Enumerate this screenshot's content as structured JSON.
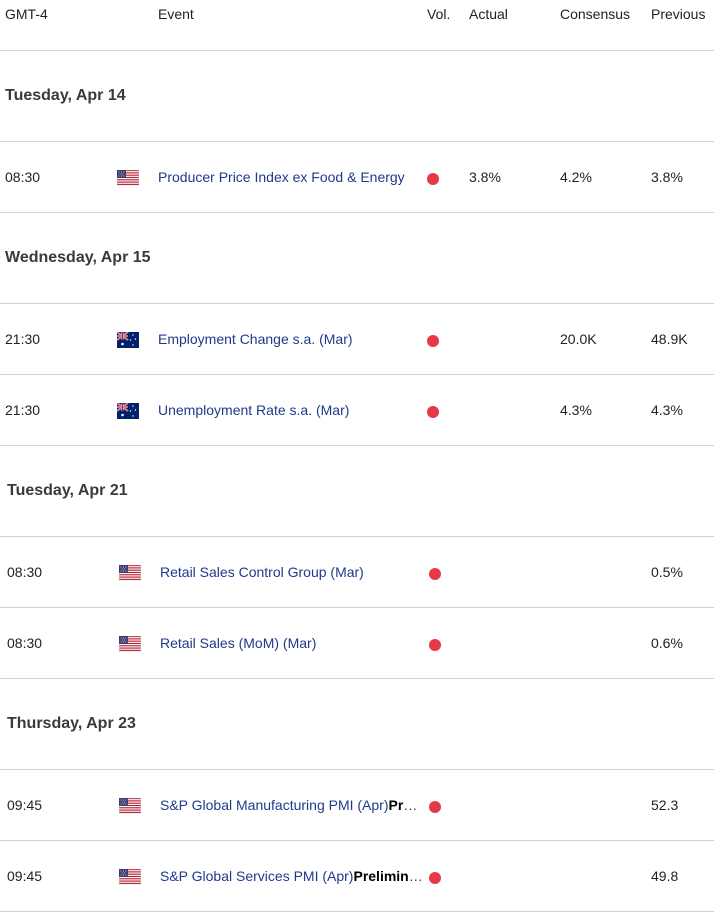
{
  "header": {
    "tz": "GMT-4",
    "event": "Event",
    "vol": "Vol.",
    "actual": "Actual",
    "consensus": "Consensus",
    "previous": "Previous"
  },
  "days": [
    {
      "label": "Tuesday, Apr 14",
      "events": [
        {
          "time": "08:30",
          "flag": "us-flag-icon",
          "event": "Producer Price Index ex Food & Energy",
          "event_bold": "",
          "actual": "3.8%",
          "consensus": "4.2%",
          "previous": "3.8%"
        }
      ]
    },
    {
      "label": "Wednesday, Apr 15",
      "events": [
        {
          "time": "21:30",
          "flag": "au-flag-icon",
          "event": "Employment Change s.a. (Mar)",
          "event_bold": "",
          "actual": "",
          "consensus": "20.0K",
          "previous": "48.9K"
        },
        {
          "time": "21:30",
          "flag": "au-flag-icon",
          "event": "Unemployment Rate s.a. (Mar)",
          "event_bold": "",
          "actual": "",
          "consensus": "4.3%",
          "previous": "4.3%"
        }
      ]
    },
    {
      "label": "Tuesday, Apr 21",
      "events": [
        {
          "time": "08:30",
          "flag": "us-flag-icon",
          "event": "Retail Sales Control Group (Mar)",
          "event_bold": "",
          "actual": "",
          "consensus": "",
          "previous": "0.5%"
        },
        {
          "time": "08:30",
          "flag": "us-flag-icon",
          "event": "Retail Sales (MoM) (Mar)",
          "event_bold": "",
          "actual": "",
          "consensus": "",
          "previous": "0.6%"
        }
      ]
    },
    {
      "label": "Thursday, Apr 23",
      "events": [
        {
          "time": "09:45",
          "flag": "us-flag-icon",
          "event": "S&P Global Manufacturing PMI (Apr)",
          "event_bold": "Preliminary",
          "actual": "",
          "consensus": "",
          "previous": "52.3"
        },
        {
          "time": "09:45",
          "flag": "us-flag-icon",
          "event": "S&P Global Services PMI (Apr)",
          "event_bold": "Preliminary",
          "actual": "",
          "consensus": "",
          "previous": "49.8"
        }
      ]
    }
  ],
  "colors": {
    "vol_high": "#e53948",
    "event_text": "#1f3a8a"
  }
}
